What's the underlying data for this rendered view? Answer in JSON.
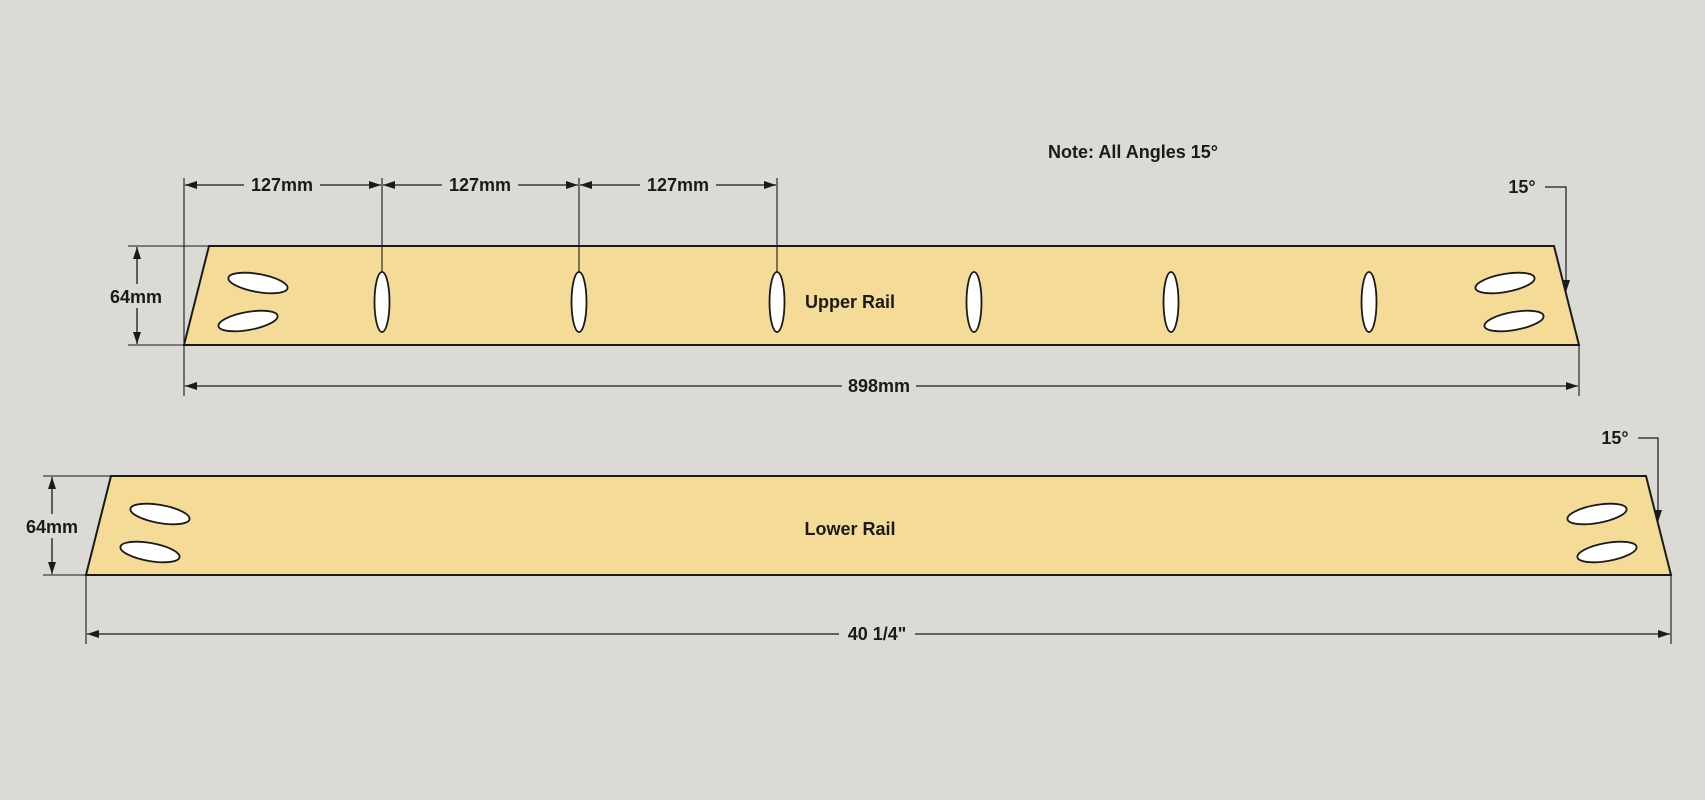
{
  "note": "Note: All Angles 15°",
  "colors": {
    "background": "#dcdad5",
    "board": "#f5db98",
    "hole": "#ffffff",
    "line": "#1a1a1a"
  },
  "upper_rail": {
    "label": "Upper Rail",
    "height_dim": "64mm",
    "length_dim": "898mm",
    "angle_dim": "15°",
    "spacing_dims": [
      "127mm",
      "127mm",
      "127mm"
    ]
  },
  "lower_rail": {
    "label": "Lower Rail",
    "height_dim": "64mm",
    "length_dim": "40 1/4\"",
    "angle_dim": "15°"
  }
}
